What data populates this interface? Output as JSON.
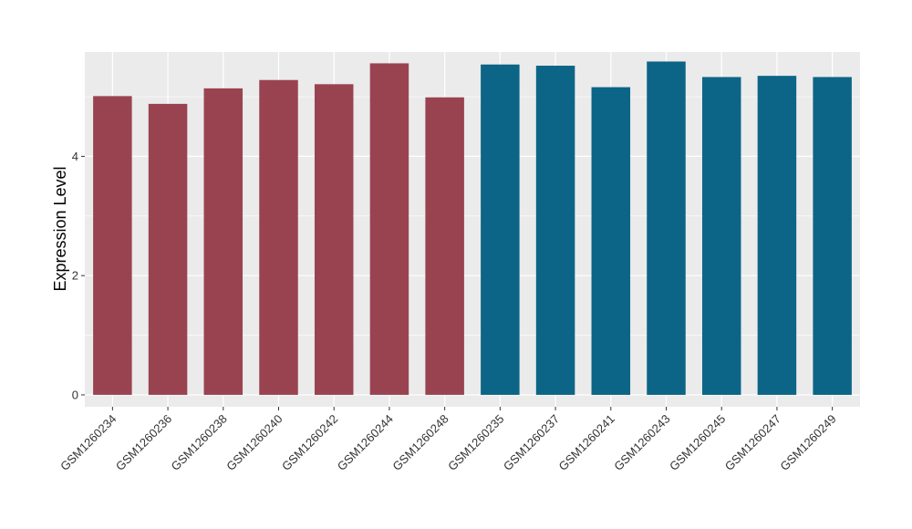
{
  "chart_data": {
    "type": "bar",
    "title": "",
    "xlabel": "",
    "ylabel": "Expression Level",
    "ylim": [
      -0.2,
      5.75
    ],
    "yticks": [
      0,
      2,
      4
    ],
    "grid": true,
    "legend": "none",
    "colors": {
      "group_a": "#9A4350",
      "group_b": "#0C6586",
      "panel": "#EBEBEB",
      "grid": "#FFFFFF"
    },
    "categories": [
      "GSM1260234",
      "GSM1260236",
      "GSM1260238",
      "GSM1260240",
      "GSM1260242",
      "GSM1260244",
      "GSM1260248",
      "GSM1260235",
      "GSM1260237",
      "GSM1260241",
      "GSM1260243",
      "GSM1260245",
      "GSM1260247",
      "GSM1260249"
    ],
    "values": [
      5.01,
      4.88,
      5.14,
      5.28,
      5.21,
      5.56,
      4.99,
      5.54,
      5.52,
      5.16,
      5.59,
      5.33,
      5.35,
      5.33
    ],
    "groups": [
      "a",
      "a",
      "a",
      "a",
      "a",
      "a",
      "a",
      "b",
      "b",
      "b",
      "b",
      "b",
      "b",
      "b"
    ]
  }
}
